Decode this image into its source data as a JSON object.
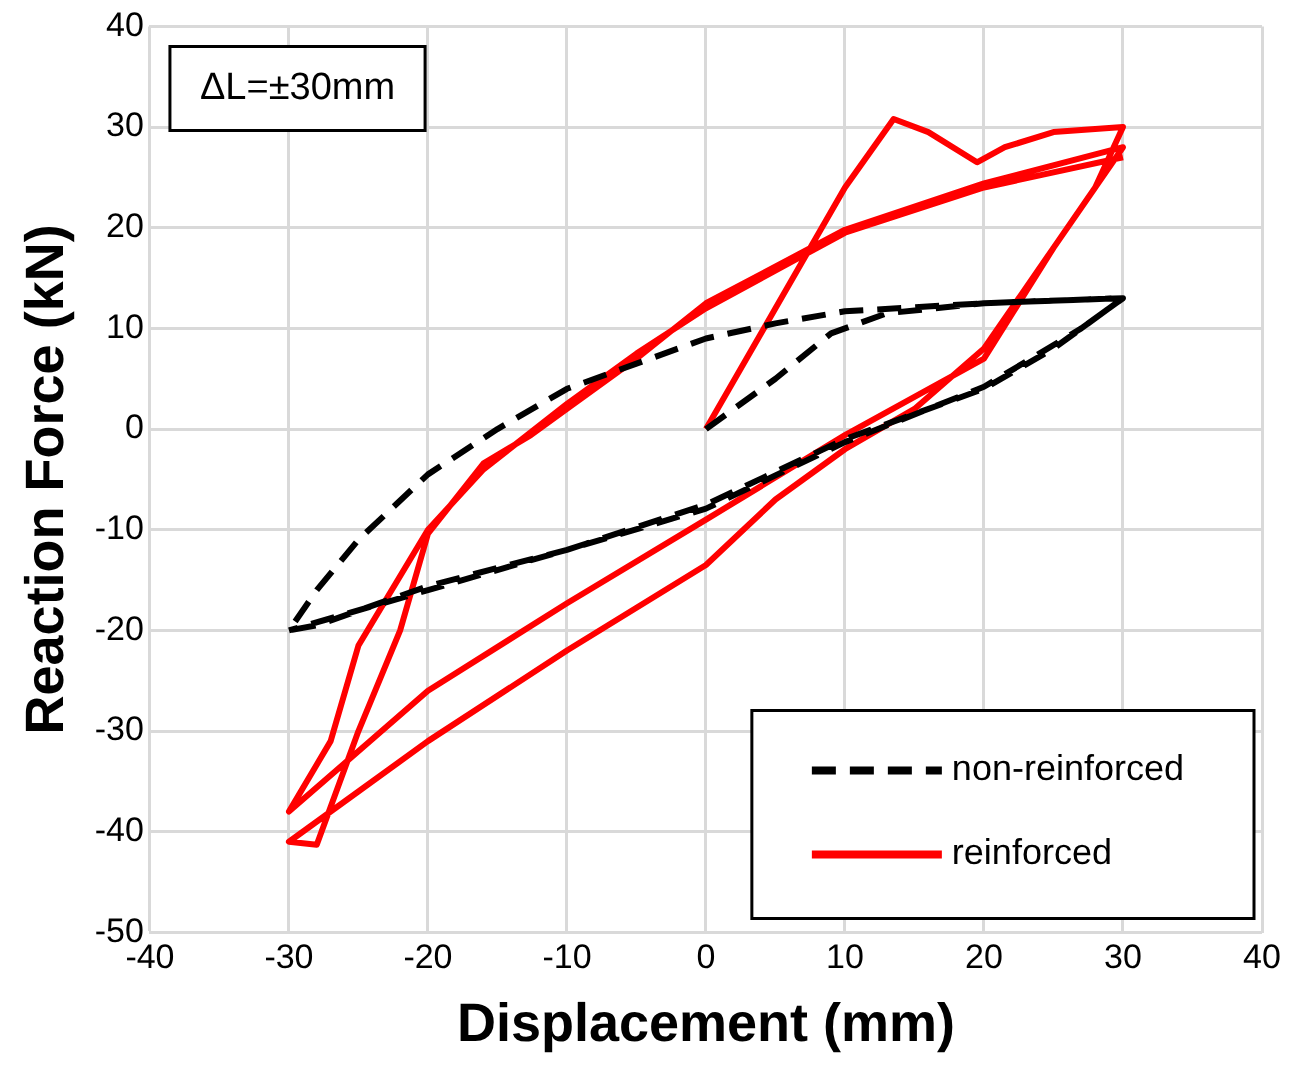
{
  "chart_data": {
    "type": "line",
    "xlabel": "Displacement (mm)",
    "ylabel": "Reaction Force (kN)",
    "xlim": [
      -40,
      40
    ],
    "xticks": [
      -40,
      -30,
      -20,
      -10,
      0,
      10,
      20,
      30,
      40
    ],
    "ylim": [
      -50,
      40
    ],
    "yticks": [
      -50,
      -40,
      -30,
      -20,
      -10,
      0,
      10,
      20,
      30,
      40
    ],
    "grid": true,
    "legend": "bottom right",
    "marker": "none",
    "annotations": [
      "ΔL=±30mm"
    ],
    "series": [
      {
        "name": "non-reinforced",
        "color": "#000000",
        "line_style": "dashed",
        "x": [
          0,
          5,
          9,
          13,
          20,
          30,
          27,
          20,
          10,
          0,
          -10,
          -20,
          -28,
          -30,
          -28,
          -25,
          -20,
          -15,
          -10,
          -5,
          0,
          5,
          10,
          20,
          30,
          25,
          20,
          10,
          0,
          -10,
          -20,
          -30
        ],
        "values": [
          0,
          5,
          9.5,
          11.5,
          12.5,
          13,
          10,
          4.2,
          -1.3,
          -7.9,
          -12,
          -15.6,
          -19.5,
          -20,
          -16,
          -11,
          -4.5,
          0,
          4,
          6.5,
          9,
          10.5,
          11.7,
          12.5,
          13,
          8,
          4,
          -1,
          -7.5,
          -12,
          -16,
          -20
        ]
      },
      {
        "name": "reinforced",
        "color": "#ff0000",
        "line_style": "solid",
        "x": [
          0,
          5,
          10,
          13.5,
          16,
          19.5,
          21.5,
          25,
          30,
          28,
          25,
          20,
          15,
          10,
          5,
          0,
          -10,
          -20,
          -26,
          -30,
          -28,
          -25,
          -22,
          -20,
          -16,
          -12.6,
          -10,
          -5,
          0,
          10,
          20,
          30,
          25,
          20,
          10,
          0,
          -10,
          -20,
          -30,
          -27,
          -25,
          -20,
          -16,
          -10,
          -5,
          0,
          10,
          20,
          30
        ],
        "values": [
          0,
          12,
          24,
          30.8,
          29.5,
          26.5,
          28,
          29.5,
          30,
          24,
          18,
          8,
          2,
          -2,
          -7,
          -13.5,
          -22,
          -31,
          -37,
          -41,
          -41.3,
          -30,
          -20,
          -10.4,
          -3.4,
          -0.6,
          2,
          7,
          12.5,
          19.8,
          24.4,
          28,
          18,
          7,
          -0.6,
          -9,
          -17.3,
          -26,
          -38,
          -31,
          -21.5,
          -10,
          -4,
          2.5,
          7.5,
          12,
          19.5,
          24,
          27
        ]
      }
    ]
  }
}
